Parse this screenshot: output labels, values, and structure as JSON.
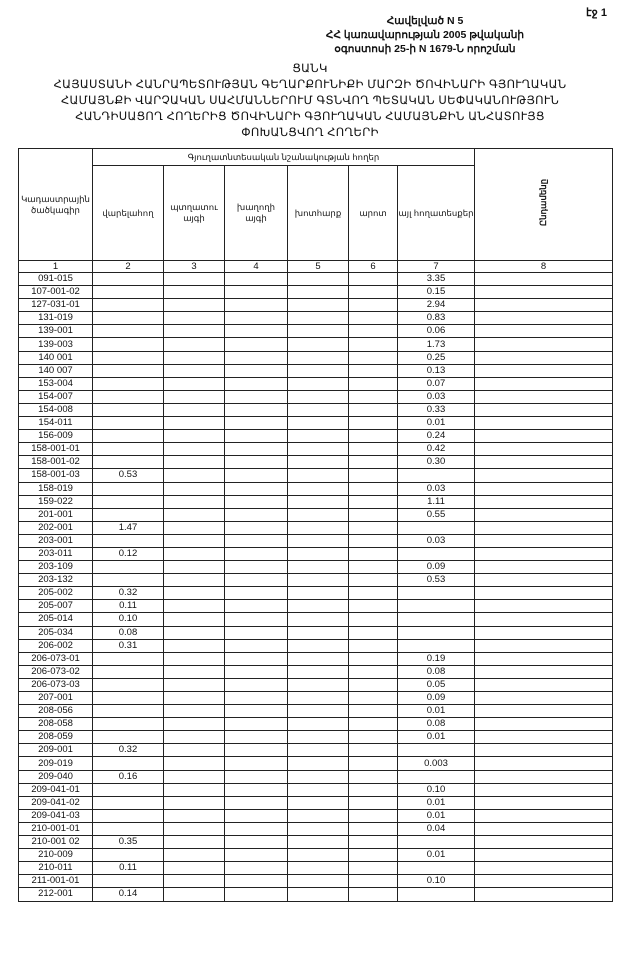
{
  "page_label": "էջ 1",
  "annex": [
    "Հավելված N 5",
    "ՀՀ կառավարության 2005 թվականի",
    "օգոստոսի 25-ի N 1679-Ն որոշման"
  ],
  "title": [
    "ՑԱՆԿ",
    "ՀԱՅԱՍՏԱՆԻ ՀԱՆՐԱՊԵՏՈՒԹՅԱՆ ԳԵՂԱՐՔՈՒՆԻՔԻ ՄԱՐԶԻ ԾՈՎԻՆԱՐԻ ԳՅՈՒՂԱԿԱՆ",
    "ՀԱՄԱՅՆՔԻ ՎԱՐՉԱԿԱՆ ՍԱՀՄԱՆՆԵՐՈՒՄ ԳՏՆՎՈՂ ՊԵՏԱԿԱՆ ՍԵՓԱԿԱՆՈՒԹՅՈՒՆ",
    "ՀԱՆԴԻՍԱՑՈՂ ՀՈՂԵՐԻՑ ԾՈՎԻՆԱՐԻ ԳՅՈՒՂԱԿԱՆ ՀԱՄԱՅՆՔԻՆ ԱՆՀԱՏՈՒՅՑ",
    "ՓՈԽԱՆՑՎՈՂ ՀՈՂԵՐԻ"
  ],
  "table": {
    "code_header": "Կադաստրային ծածկագիր",
    "group_header": "Գյուղատնտեսական նշանակության հողեր",
    "sub_headers": [
      "վարելահող",
      "պտղատու այգի",
      "խաղողի այգի",
      "խոտհարք",
      "արոտ",
      "այլ հողատեսքեր"
    ],
    "total_header": "Ընդամենը",
    "col_numbers": [
      "1",
      "2",
      "3",
      "4",
      "5",
      "6",
      "7",
      "8"
    ],
    "rows": [
      [
        "091-015",
        "",
        "",
        "",
        "",
        "",
        "3.35",
        ""
      ],
      [
        "107-001-02",
        "",
        "",
        "",
        "",
        "",
        "0.15",
        ""
      ],
      [
        "127-031-01",
        "",
        "",
        "",
        "",
        "",
        "2.94",
        ""
      ],
      [
        "131-019",
        "",
        "",
        "",
        "",
        "",
        "0.83",
        ""
      ],
      [
        "139-001",
        "",
        "",
        "",
        "",
        "",
        "0.06",
        ""
      ],
      [
        "139-003",
        "",
        "",
        "",
        "",
        "",
        "1.73",
        ""
      ],
      [
        "140 001",
        "",
        "",
        "",
        "",
        "",
        "0.25",
        ""
      ],
      [
        "140 007",
        "",
        "",
        "",
        "",
        "",
        "0.13",
        ""
      ],
      [
        "153-004",
        "",
        "",
        "",
        "",
        "",
        "0.07",
        ""
      ],
      [
        "154-007",
        "",
        "",
        "",
        "",
        "",
        "0.03",
        ""
      ],
      [
        "154-008",
        "",
        "",
        "",
        "",
        "",
        "0.33",
        ""
      ],
      [
        "154-011",
        "",
        "",
        "",
        "",
        "",
        "0.01",
        ""
      ],
      [
        "156-009",
        "",
        "",
        "",
        "",
        "",
        "0.24",
        ""
      ],
      [
        "158-001-01",
        "",
        "",
        "",
        "",
        "",
        "0.42",
        ""
      ],
      [
        "158-001-02",
        "",
        "",
        "",
        "",
        "",
        "0.30",
        ""
      ],
      [
        "158-001-03",
        "0.53",
        "",
        "",
        "",
        "",
        "",
        ""
      ],
      [
        "158-019",
        "",
        "",
        "",
        "",
        "",
        "0.03",
        ""
      ],
      [
        "159-022",
        "",
        "",
        "",
        "",
        "",
        "1.11",
        ""
      ],
      [
        "201-001",
        "",
        "",
        "",
        "",
        "",
        "0.55",
        ""
      ],
      [
        "202-001",
        "1.47",
        "",
        "",
        "",
        "",
        "",
        ""
      ],
      [
        "203-001",
        "",
        "",
        "",
        "",
        "",
        "0.03",
        ""
      ],
      [
        "203-011",
        "0.12",
        "",
        "",
        "",
        "",
        "",
        ""
      ],
      [
        "203-109",
        "",
        "",
        "",
        "",
        "",
        "0.09",
        ""
      ],
      [
        "203-132",
        "",
        "",
        "",
        "",
        "",
        "0.53",
        ""
      ],
      [
        "205-002",
        "0.32",
        "",
        "",
        "",
        "",
        "",
        ""
      ],
      [
        "205-007",
        "0.11",
        "",
        "",
        "",
        "",
        "",
        ""
      ],
      [
        "205-014",
        "0.10",
        "",
        "",
        "",
        "",
        "",
        ""
      ],
      [
        "205-034",
        "0.08",
        "",
        "",
        "",
        "",
        "",
        ""
      ],
      [
        "206-002",
        "0.31",
        "",
        "",
        "",
        "",
        "",
        ""
      ],
      [
        "206-073-01",
        "",
        "",
        "",
        "",
        "",
        "0.19",
        ""
      ],
      [
        "206-073-02",
        "",
        "",
        "",
        "",
        "",
        "0.08",
        ""
      ],
      [
        "206-073-03",
        "",
        "",
        "",
        "",
        "",
        "0.05",
        ""
      ],
      [
        "207-001",
        "",
        "",
        "",
        "",
        "",
        "0.09",
        ""
      ],
      [
        "208-056",
        "",
        "",
        "",
        "",
        "",
        "0.01",
        ""
      ],
      [
        "208-058",
        "",
        "",
        "",
        "",
        "",
        "0.08",
        ""
      ],
      [
        "208-059",
        "",
        "",
        "",
        "",
        "",
        "0.01",
        ""
      ],
      [
        "209-001",
        "0.32",
        "",
        "",
        "",
        "",
        "",
        ""
      ],
      [
        "209-019",
        "",
        "",
        "",
        "",
        "",
        "0.003",
        ""
      ],
      [
        "209-040",
        "0.16",
        "",
        "",
        "",
        "",
        "",
        ""
      ],
      [
        "209-041-01",
        "",
        "",
        "",
        "",
        "",
        "0.10",
        ""
      ],
      [
        "209-041-02",
        "",
        "",
        "",
        "",
        "",
        "0.01",
        ""
      ],
      [
        "209-041-03",
        "",
        "",
        "",
        "",
        "",
        "0.01",
        ""
      ],
      [
        "210-001-01",
        "",
        "",
        "",
        "",
        "",
        "0.04",
        ""
      ],
      [
        "210-001 02",
        "0.35",
        "",
        "",
        "",
        "",
        "",
        ""
      ],
      [
        "210-009",
        "",
        "",
        "",
        "",
        "",
        "0.01",
        ""
      ],
      [
        "210-011",
        "0.11",
        "",
        "",
        "",
        "",
        "",
        ""
      ],
      [
        "211-001-01",
        "",
        "",
        "",
        "",
        "",
        "0.10",
        ""
      ],
      [
        "212-001",
        "0.14",
        "",
        "",
        "",
        "",
        "",
        ""
      ]
    ]
  }
}
